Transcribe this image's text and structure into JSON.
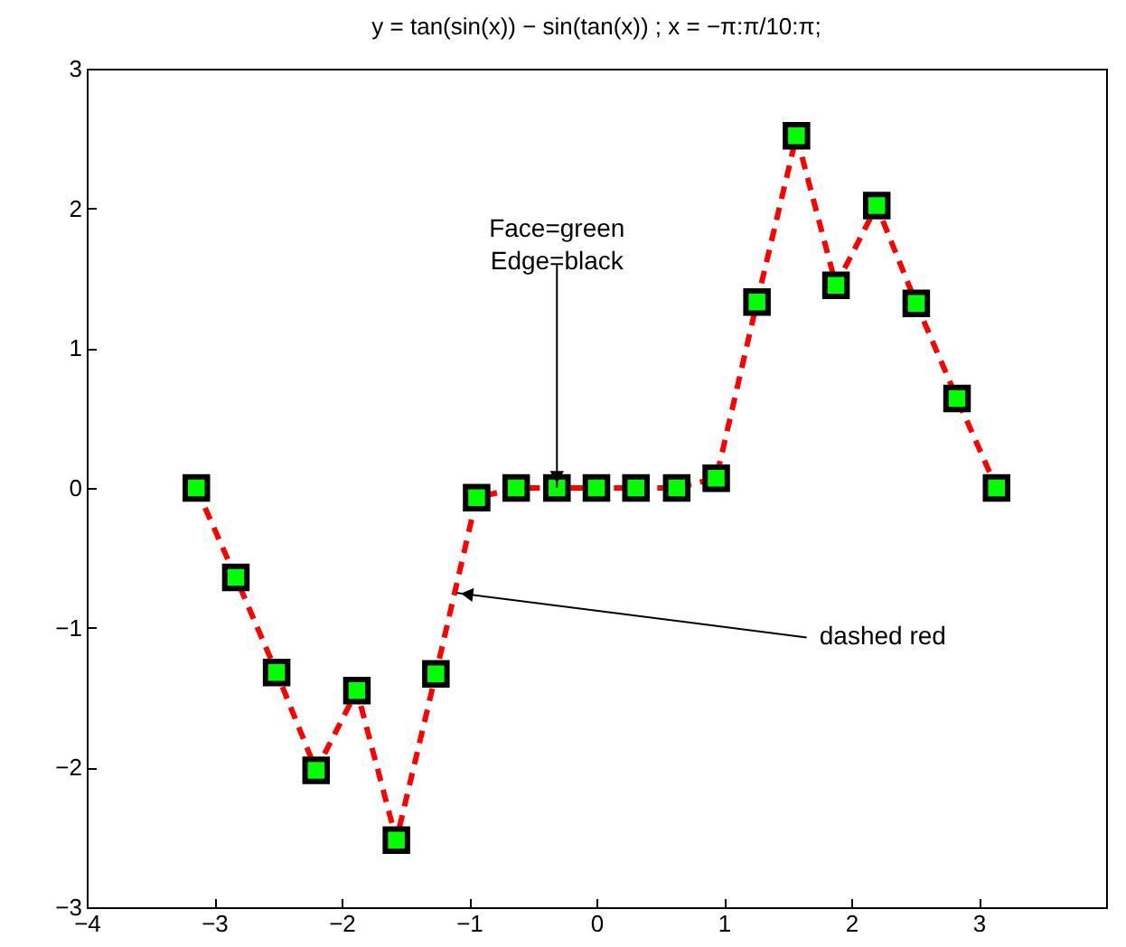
{
  "chart_data": {
    "type": "line",
    "title": "y = tan(sin(x)) − sin(tan(x)) ;  x = −π:π/10:π;",
    "x": [
      -3.14,
      -2.83,
      -2.51,
      -2.2,
      -1.88,
      -1.57,
      -1.26,
      -0.94,
      -0.63,
      -0.31,
      0,
      0.31,
      0.63,
      0.94,
      1.26,
      1.57,
      1.88,
      2.2,
      2.51,
      2.83,
      3.14
    ],
    "series": [
      {
        "color": "#ff0000",
        "values": [
          0,
          -0.64,
          -1.32,
          -2.02,
          -1.45,
          -2.52,
          -1.33,
          -0.07,
          0,
          0,
          0,
          0,
          0,
          0.07,
          1.33,
          2.52,
          1.45,
          2.02,
          1.32,
          0.64,
          0
        ]
      }
    ],
    "marker": "square",
    "line_style": "dashed",
    "xlim": [
      -4,
      4
    ],
    "xticks": [
      -4,
      -3,
      -2,
      -1,
      0,
      1,
      2,
      3
    ],
    "ylim": [
      -3,
      3
    ],
    "yticks": [
      -3,
      -2,
      -1,
      0,
      1,
      2,
      3
    ],
    "annotations": [
      {
        "text": "Face=green\nEdge=black",
        "x": -0.31,
        "y": 0
      },
      {
        "text": "dashed red",
        "x": -1.1,
        "y": -0.75
      }
    ]
  }
}
